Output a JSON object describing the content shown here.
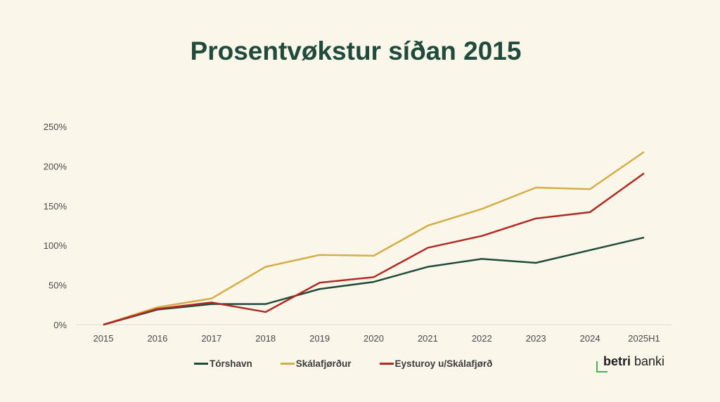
{
  "chart_data": {
    "type": "line",
    "title": "Prosentvøkstur síðan 2015",
    "xlabel": "",
    "ylabel": "",
    "categories": [
      "2015",
      "2016",
      "2017",
      "2018",
      "2019",
      "2020",
      "2021",
      "2022",
      "2023",
      "2024",
      "2025H1"
    ],
    "ylim": [
      0,
      250
    ],
    "yticks": [
      "0%",
      "50%",
      "100%",
      "150%",
      "200%",
      "250%"
    ],
    "grid": false,
    "legend": "bottom",
    "series": [
      {
        "name": "Tórshavn",
        "color": "#1f4a3c",
        "values": [
          0,
          19,
          26,
          26,
          45,
          54,
          73,
          83,
          78,
          94,
          110
        ]
      },
      {
        "name": "Skálafjørður",
        "color": "#d4ae45",
        "values": [
          0,
          22,
          33,
          73,
          88,
          87,
          125,
          146,
          173,
          171,
          218
        ]
      },
      {
        "name": "Eysturoy u/Skálafjørð",
        "color": "#b02a22",
        "values": [
          0,
          20,
          28,
          16,
          53,
          60,
          97,
          112,
          134,
          142,
          191
        ]
      }
    ]
  },
  "logo": {
    "bold": "betri",
    "rest": " banki",
    "accent": "#4caf50"
  }
}
